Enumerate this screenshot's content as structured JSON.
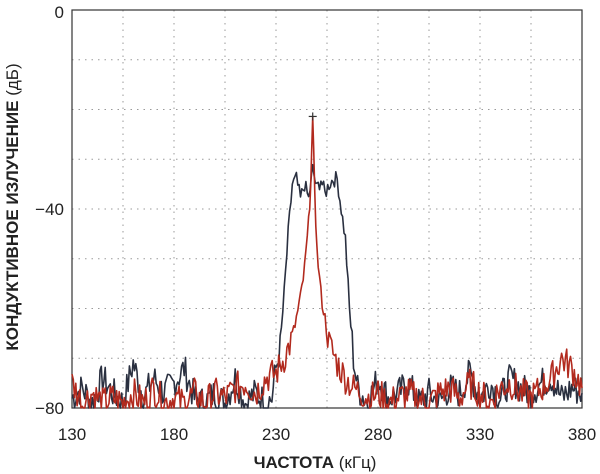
{
  "chart_data": {
    "type": "line",
    "xlabel_main": "ЧАСТОТА",
    "xlabel_unit": "(кГц)",
    "ylabel_main": "КОНДУКТИВНОЕ ИЗЛУЧЕНИЕ",
    "ylabel_unit": "(дБ)",
    "xlim": [
      130,
      380
    ],
    "ylim": [
      -80,
      0
    ],
    "x_ticks": [
      130,
      180,
      230,
      280,
      330,
      380
    ],
    "y_ticks": [
      0,
      -40,
      -80
    ],
    "grid": true,
    "grid_style": "dotted",
    "peak_marker": {
      "x": 248,
      "y": -22
    },
    "series": [
      {
        "color": "#2a3040",
        "x": [
          130,
          135,
          140,
          145,
          150,
          155,
          160,
          165,
          170,
          175,
          180,
          185,
          190,
          195,
          200,
          205,
          210,
          215,
          220,
          225,
          228,
          230,
          232,
          234,
          236,
          238,
          240,
          242,
          244,
          246,
          248,
          250,
          252,
          254,
          256,
          258,
          260,
          262,
          264,
          266,
          268,
          270,
          275,
          280,
          285,
          290,
          295,
          300,
          305,
          310,
          315,
          320,
          325,
          330,
          335,
          340,
          345,
          350,
          355,
          360,
          365,
          370,
          375,
          380
        ],
        "y": [
          -78,
          -76,
          -79,
          -74,
          -77,
          -79,
          -71,
          -78,
          -74,
          -77,
          -75,
          -72,
          -78,
          -79,
          -77,
          -79,
          -74,
          -79,
          -77,
          -79,
          -78,
          -72,
          -68,
          -57,
          -45,
          -35,
          -34,
          -38,
          -35,
          -38,
          -32,
          -36,
          -34,
          -37,
          -35,
          -34,
          -34,
          -40,
          -46,
          -60,
          -70,
          -76,
          -79,
          -74,
          -78,
          -77,
          -75,
          -79,
          -77,
          -79,
          -76,
          -77,
          -73,
          -78,
          -75,
          -78,
          -74,
          -76,
          -77,
          -75,
          -74,
          -78,
          -76,
          -77
        ]
      },
      {
        "color": "#b22a1e",
        "x": [
          130,
          135,
          140,
          145,
          150,
          155,
          160,
          165,
          170,
          175,
          180,
          185,
          190,
          195,
          200,
          205,
          210,
          215,
          220,
          225,
          230,
          234,
          238,
          240,
          242,
          244,
          246,
          247,
          248,
          249,
          250,
          252,
          254,
          256,
          258,
          260,
          264,
          268,
          272,
          276,
          280,
          285,
          290,
          295,
          300,
          305,
          310,
          315,
          320,
          325,
          330,
          335,
          340,
          345,
          350,
          355,
          360,
          365,
          370,
          375,
          380
        ],
        "y": [
          -75,
          -79,
          -77,
          -79,
          -78,
          -79,
          -77,
          -79,
          -76,
          -79,
          -78,
          -79,
          -77,
          -79,
          -77,
          -78,
          -76,
          -75,
          -77,
          -74,
          -73,
          -70,
          -66,
          -62,
          -58,
          -52,
          -43,
          -34,
          -23,
          -36,
          -48,
          -57,
          -62,
          -67,
          -69,
          -71,
          -74,
          -76,
          -77,
          -78,
          -77,
          -79,
          -78,
          -77,
          -78,
          -79,
          -77,
          -76,
          -78,
          -75,
          -77,
          -79,
          -76,
          -75,
          -77,
          -78,
          -76,
          -74,
          -70,
          -72,
          -76
        ]
      }
    ]
  }
}
